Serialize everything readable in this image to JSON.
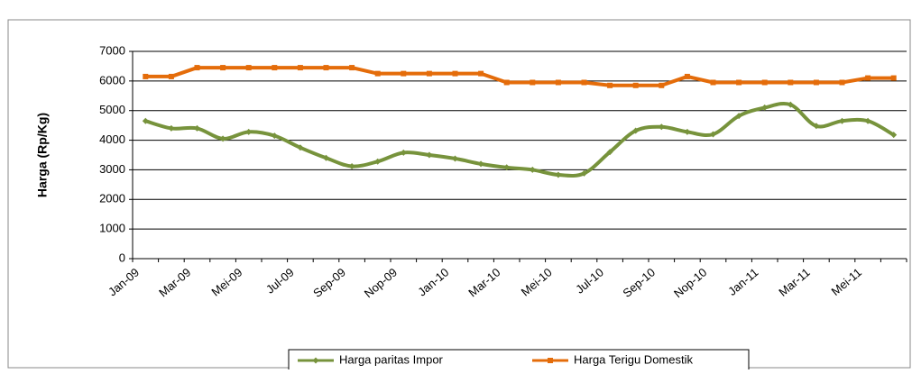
{
  "chart_data": {
    "type": "line",
    "y_label": "Harga (Rp/Kg)",
    "categories": [
      "Jan-09",
      null,
      "Mar-09",
      null,
      "Mei-09",
      null,
      "Jul-09",
      null,
      "Sep-09",
      null,
      "Nop-09",
      null,
      "Jan-10",
      null,
      "Mar-10",
      null,
      "Mei-10",
      null,
      "Jul-10",
      null,
      "Sep-10",
      null,
      "Nop-10",
      null,
      "Jan-11",
      null,
      "Mar-11",
      null,
      "Mei-11",
      null
    ],
    "series": [
      {
        "name": "Harga paritas Impor",
        "color": "#77933c",
        "marker": "diamond",
        "smooth": true,
        "values": [
          4650,
          4400,
          4400,
          4050,
          4280,
          4150,
          3750,
          3400,
          3120,
          3280,
          3580,
          3500,
          3380,
          3200,
          3080,
          3000,
          2830,
          2880,
          3600,
          4320,
          4450,
          4280,
          4200,
          4820,
          5100,
          5200,
          4480,
          4650,
          4650,
          4180
        ]
      },
      {
        "name": "Harga Terigu Domestik",
        "color": "#e46c0a",
        "marker": "square",
        "smooth": false,
        "values": [
          6150,
          6150,
          6450,
          6450,
          6450,
          6450,
          6450,
          6450,
          6450,
          6250,
          6250,
          6250,
          6250,
          6250,
          5950,
          5950,
          5950,
          5950,
          5850,
          5850,
          5850,
          6150,
          5950,
          5950,
          5950,
          5950,
          5950,
          5950,
          6100,
          6100
        ]
      }
    ],
    "ylim": [
      0,
      7000
    ],
    "yticks": [
      0,
      1000,
      2000,
      3000,
      4000,
      5000,
      6000,
      7000
    ],
    "grid": true,
    "legend": "bottom"
  }
}
